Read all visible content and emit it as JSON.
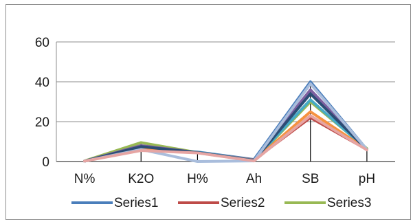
{
  "chart_data": {
    "type": "line",
    "categories": [
      "N%",
      "K2O",
      "H%",
      "Ah",
      "SB",
      "pH"
    ],
    "ylim": [
      0,
      60
    ],
    "yticks": [
      0,
      20,
      40,
      60
    ],
    "grid": true,
    "legend_position": "bottom",
    "series": [
      {
        "name": "Series1",
        "color": "#4a7ebb",
        "values": [
          0.2,
          6,
          4.8,
          1,
          40,
          6
        ]
      },
      {
        "name": "Series2",
        "color": "#be4b48",
        "values": [
          0.2,
          6.5,
          4.5,
          0.8,
          22,
          6
        ]
      },
      {
        "name": "Series3",
        "color": "#98b954",
        "values": [
          0.3,
          9.5,
          4.5,
          0.5,
          30,
          6.5
        ]
      },
      {
        "color": "#7d60a0",
        "values": [
          0.2,
          8,
          4.5,
          0.5,
          36,
          6
        ]
      },
      {
        "color": "#46aac5",
        "values": [
          0.2,
          7,
          4.6,
          0.6,
          31,
          6
        ]
      },
      {
        "color": "#f69240",
        "values": [
          0.2,
          6,
          4.4,
          0.4,
          25,
          6
        ]
      },
      {
        "color": "#2c4d75",
        "values": [
          0.2,
          7.5,
          4.5,
          0.5,
          34,
          6
        ]
      },
      {
        "color": "#a9bddc",
        "values": [
          0.2,
          6,
          0,
          0.3,
          39,
          6
        ]
      },
      {
        "color": "#e6a5a3",
        "values": [
          0.2,
          5.5,
          4.3,
          0.3,
          23,
          5.8
        ]
      }
    ]
  }
}
